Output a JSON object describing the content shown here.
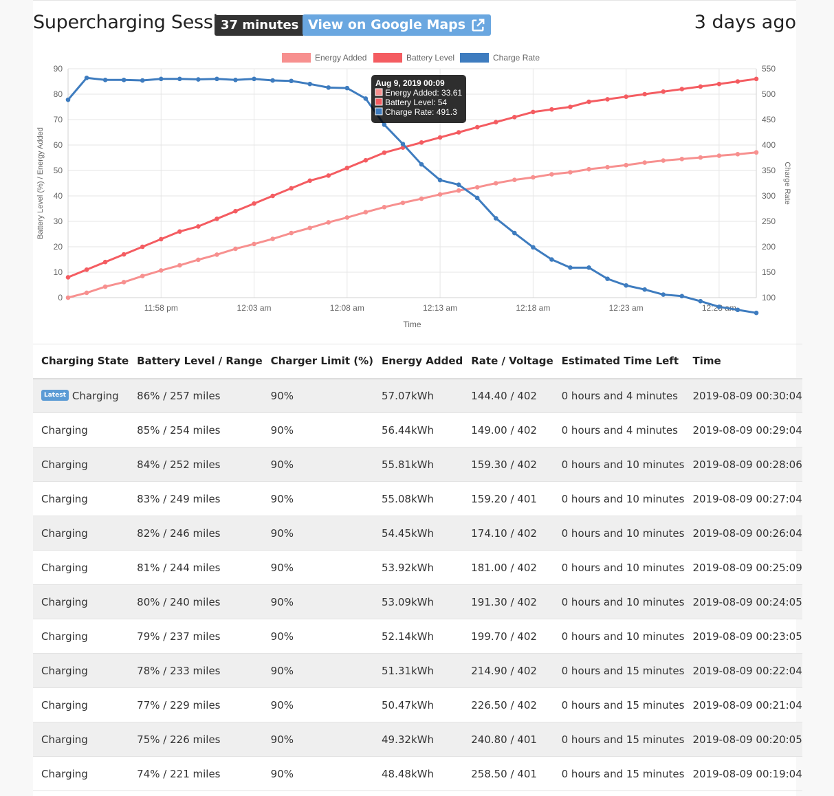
{
  "header": {
    "title": "Supercharging Session",
    "duration": "37 minutes",
    "maps_label": "View on Google Maps",
    "ago": "3 days ago"
  },
  "colors": {
    "energy": "#f7908f",
    "battery": "#f45c61",
    "rate": "#3e7cbf",
    "latest_badge": "#5b9bd5",
    "maps_button": "#6aa7e0"
  },
  "chart_data": {
    "type": "line",
    "xlabel": "Time",
    "ylabel_left": "Battery Level (%) / Energy Added",
    "ylabel_right": "Charge Rate",
    "ylim_left": [
      0,
      90
    ],
    "ylim_right": [
      100,
      550
    ],
    "yticks_left": [
      0,
      10,
      20,
      30,
      40,
      50,
      60,
      70,
      80,
      90
    ],
    "yticks_right": [
      100,
      150,
      200,
      250,
      300,
      350,
      400,
      450,
      500,
      550
    ],
    "grid": true,
    "legend": "top-center",
    "x_start": "23:53",
    "x_end": "00:30",
    "xticks": [
      {
        "t": "23:58",
        "label": "11:58 pm"
      },
      {
        "t": "00:03",
        "label": "12:03 am"
      },
      {
        "t": "00:08",
        "label": "12:08 am"
      },
      {
        "t": "00:13",
        "label": "12:13 am"
      },
      {
        "t": "00:18",
        "label": "12:18 am"
      },
      {
        "t": "00:23",
        "label": "12:23 am"
      },
      {
        "t": "00:28",
        "label": "12:28 am"
      }
    ],
    "x": [
      "23:53",
      "23:54",
      "23:55",
      "23:56",
      "23:57",
      "23:58",
      "23:59",
      "00:00",
      "00:01",
      "00:02",
      "00:03",
      "00:04",
      "00:05",
      "00:06",
      "00:07",
      "00:08",
      "00:09",
      "00:10",
      "00:11",
      "00:12",
      "00:13",
      "00:14",
      "00:15",
      "00:16",
      "00:17",
      "00:18",
      "00:19",
      "00:20",
      "00:21",
      "00:22",
      "00:23",
      "00:24",
      "00:25",
      "00:26",
      "00:27",
      "00:28",
      "00:29",
      "00:30"
    ],
    "series": [
      {
        "name": "Energy Added",
        "axis": "left",
        "values": [
          0,
          1.9,
          4.3,
          6.1,
          8.5,
          10.7,
          12.7,
          14.9,
          16.9,
          19.2,
          21.1,
          23.1,
          25.4,
          27.4,
          29.6,
          31.5,
          33.61,
          35.6,
          37.3,
          38.9,
          40.6,
          42.1,
          43.4,
          45.0,
          46.3,
          47.3,
          48.5,
          49.3,
          50.5,
          51.3,
          52.1,
          53.1,
          53.9,
          54.5,
          55.1,
          55.8,
          56.4,
          57.1
        ]
      },
      {
        "name": "Battery Level",
        "axis": "left",
        "values": [
          8,
          11,
          14,
          17,
          20,
          23,
          26,
          28,
          31,
          34,
          37,
          40,
          43,
          46,
          48,
          51,
          54,
          57,
          59,
          61,
          63,
          65,
          67,
          69,
          71,
          73,
          74,
          75,
          77,
          78,
          79,
          80,
          81,
          82,
          83,
          84,
          85,
          86
        ]
      },
      {
        "name": "Charge Rate",
        "axis": "right",
        "values": [
          489,
          532,
          528,
          528,
          527,
          530,
          530,
          529,
          530,
          528,
          530,
          527,
          526,
          520,
          513,
          512,
          491.3,
          440,
          402,
          362,
          331,
          322,
          296,
          256,
          227,
          199,
          175,
          159,
          159,
          137,
          124,
          116,
          106,
          103,
          93,
          82,
          76,
          70
        ]
      }
    ],
    "tooltip": {
      "title": "Aug 9, 2019 00:09",
      "lines": [
        "Energy Added: 33.61",
        "Battery Level: 54",
        "Charge Rate: 491.3"
      ]
    }
  },
  "table": {
    "columns": [
      "Charging State",
      "Battery Level / Range",
      "Charger Limit (%)",
      "Energy Added",
      "Rate / Voltage",
      "Estimated Time Left",
      "Time"
    ],
    "latest_label": "Latest",
    "rows": [
      {
        "state": "Charging",
        "latest": true,
        "battery": "86% / 257 miles",
        "limit": "90%",
        "energy": "57.07kWh",
        "rate": "144.40 / 402",
        "eta": "0 hours and 4 minutes",
        "time": "2019-08-09 00:30:04"
      },
      {
        "state": "Charging",
        "latest": false,
        "battery": "85% / 254 miles",
        "limit": "90%",
        "energy": "56.44kWh",
        "rate": "149.00 / 402",
        "eta": "0 hours and 4 minutes",
        "time": "2019-08-09 00:29:04"
      },
      {
        "state": "Charging",
        "latest": false,
        "battery": "84% / 252 miles",
        "limit": "90%",
        "energy": "55.81kWh",
        "rate": "159.30 / 402",
        "eta": "0 hours and 10 minutes",
        "time": "2019-08-09 00:28:06"
      },
      {
        "state": "Charging",
        "latest": false,
        "battery": "83% / 249 miles",
        "limit": "90%",
        "energy": "55.08kWh",
        "rate": "159.20 / 401",
        "eta": "0 hours and 10 minutes",
        "time": "2019-08-09 00:27:04"
      },
      {
        "state": "Charging",
        "latest": false,
        "battery": "82% / 246 miles",
        "limit": "90%",
        "energy": "54.45kWh",
        "rate": "174.10 / 402",
        "eta": "0 hours and 10 minutes",
        "time": "2019-08-09 00:26:04"
      },
      {
        "state": "Charging",
        "latest": false,
        "battery": "81% / 244 miles",
        "limit": "90%",
        "energy": "53.92kWh",
        "rate": "181.00 / 402",
        "eta": "0 hours and 10 minutes",
        "time": "2019-08-09 00:25:09"
      },
      {
        "state": "Charging",
        "latest": false,
        "battery": "80% / 240 miles",
        "limit": "90%",
        "energy": "53.09kWh",
        "rate": "191.30 / 402",
        "eta": "0 hours and 10 minutes",
        "time": "2019-08-09 00:24:05"
      },
      {
        "state": "Charging",
        "latest": false,
        "battery": "79% / 237 miles",
        "limit": "90%",
        "energy": "52.14kWh",
        "rate": "199.70 / 402",
        "eta": "0 hours and 10 minutes",
        "time": "2019-08-09 00:23:05"
      },
      {
        "state": "Charging",
        "latest": false,
        "battery": "78% / 233 miles",
        "limit": "90%",
        "energy": "51.31kWh",
        "rate": "214.90 / 402",
        "eta": "0 hours and 15 minutes",
        "time": "2019-08-09 00:22:04"
      },
      {
        "state": "Charging",
        "latest": false,
        "battery": "77% / 229 miles",
        "limit": "90%",
        "energy": "50.47kWh",
        "rate": "226.50 / 402",
        "eta": "0 hours and 15 minutes",
        "time": "2019-08-09 00:21:04"
      },
      {
        "state": "Charging",
        "latest": false,
        "battery": "75% / 226 miles",
        "limit": "90%",
        "energy": "49.32kWh",
        "rate": "240.80 / 401",
        "eta": "0 hours and 15 minutes",
        "time": "2019-08-09 00:20:05"
      },
      {
        "state": "Charging",
        "latest": false,
        "battery": "74% / 221 miles",
        "limit": "90%",
        "energy": "48.48kWh",
        "rate": "258.50 / 401",
        "eta": "0 hours and 15 minutes",
        "time": "2019-08-09 00:19:04"
      }
    ]
  }
}
